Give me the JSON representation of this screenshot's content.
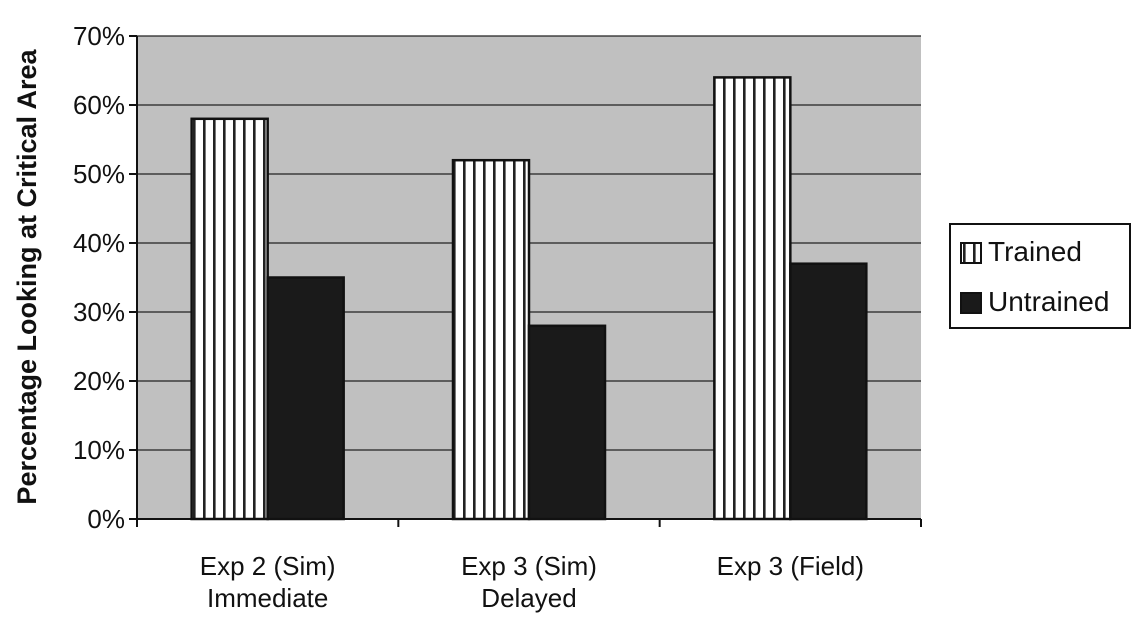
{
  "chart_data": {
    "type": "bar",
    "title": "",
    "xlabel": "",
    "ylabel": "Percentage Looking at Critical Area",
    "categories": [
      [
        "Exp 2 (Sim)",
        "Immediate"
      ],
      [
        "Exp 3 (Sim)",
        "Delayed"
      ],
      [
        "Exp 3 (Field)"
      ]
    ],
    "series": [
      {
        "name": "Trained",
        "values": [
          58,
          52,
          64
        ],
        "pattern": "vertical-stripes",
        "color": "#ffffff"
      },
      {
        "name": "Untrained",
        "values": [
          35,
          28,
          37
        ],
        "pattern": "solid",
        "color": "#1a1a1a"
      }
    ],
    "ylim": [
      0,
      70
    ],
    "yticks": [
      0,
      10,
      20,
      30,
      40,
      50,
      60,
      70
    ],
    "ytick_format": "percent",
    "grid": true,
    "plot_background": "#c0c0c0",
    "legend": "right"
  }
}
